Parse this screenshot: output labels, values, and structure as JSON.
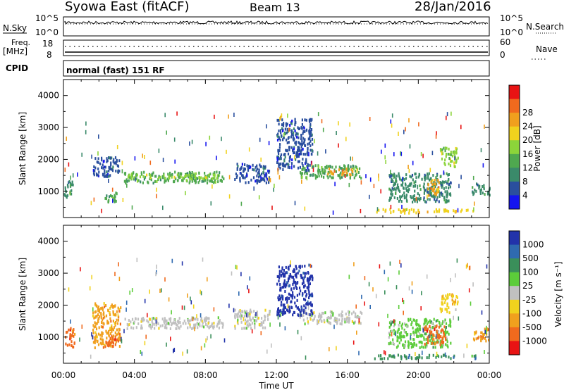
{
  "header": {
    "station": "Syowa East (fitACF)",
    "beam": "Beam 13",
    "date": "28/Jan/2016"
  },
  "top_panels": {
    "nsky_label": "N.Sky",
    "nsky_ticks": [
      "10^5",
      "10^0"
    ],
    "nsky_right_ticks": [
      "10^5",
      "10^0"
    ],
    "nsearch_label": "N.Search",
    "freq_label_1": "Freq.",
    "freq_label_2": "[MHz]",
    "freq_ticks": [
      "18",
      "8"
    ],
    "nave_ticks": [
      "60",
      "0"
    ],
    "nave_label": "Nave",
    "cpid_label": "CPID",
    "cpid_text": "normal (fast) 151 RF"
  },
  "colors": {
    "power": [
      "#1414f0",
      "#2a4f9e",
      "#3a8a6a",
      "#4fa84f",
      "#8cd43a",
      "#f0d21e",
      "#f0a01e",
      "#f06a1e",
      "#e81414"
    ],
    "velocity": [
      "#2233aa",
      "#2f6ab0",
      "#3a8f5a",
      "#5ccc3a",
      "#c0c0c0",
      "#f0d21e",
      "#f0a01e",
      "#f06a1e",
      "#e81414"
    ]
  },
  "chart_data": [
    {
      "type": "heatmap",
      "name": "power",
      "ylabel": "Slant Range [km]",
      "ylim": [
        180,
        4500
      ],
      "yticks": [
        "1000",
        "2000",
        "3000",
        "4000"
      ],
      "xlim": [
        0,
        24
      ],
      "colorbar_label": "Power [dB]",
      "colorbar_ticks": [
        "4",
        "8",
        "12",
        "16",
        "20",
        "24",
        "28"
      ],
      "regions": [
        {
          "t0": 3.4,
          "t1": 9.0,
          "r0": 1300,
          "r1": 1650,
          "c": 3
        },
        {
          "t0": 3.6,
          "t1": 8.8,
          "r0": 1420,
          "r1": 1560,
          "c": 4
        },
        {
          "t0": 1.6,
          "t1": 3.2,
          "r0": 1500,
          "r1": 2100,
          "c": 1
        },
        {
          "t0": 0.0,
          "t1": 0.5,
          "r0": 800,
          "r1": 1350,
          "c": 2
        },
        {
          "t0": 2.3,
          "t1": 3.0,
          "r0": 700,
          "r1": 1000,
          "c": 3
        },
        {
          "t0": 9.6,
          "t1": 11.6,
          "r0": 1300,
          "r1": 1900,
          "c": 1
        },
        {
          "t0": 13.3,
          "t1": 16.8,
          "r0": 1450,
          "r1": 1850,
          "c": 3
        },
        {
          "t0": 14.8,
          "t1": 16.3,
          "r0": 1550,
          "r1": 1750,
          "c": 6
        },
        {
          "t0": 17.5,
          "t1": 23.2,
          "r0": 360,
          "r1": 480,
          "c": 5
        },
        {
          "t0": 18.3,
          "t1": 21.8,
          "r0": 700,
          "r1": 1600,
          "c": 2
        },
        {
          "t0": 20.5,
          "t1": 21.2,
          "r0": 900,
          "r1": 1400,
          "c": 6
        },
        {
          "t0": 21.2,
          "t1": 22.2,
          "r0": 1800,
          "r1": 2400,
          "c": 4
        },
        {
          "t0": 23.0,
          "t1": 24.0,
          "r0": 900,
          "r1": 1300,
          "c": 2
        },
        {
          "t0": 12.0,
          "t1": 14.0,
          "r0": 1700,
          "r1": 3300,
          "c": 1
        }
      ]
    },
    {
      "type": "heatmap",
      "name": "velocity",
      "ylabel": "Slant Range [km]",
      "ylim": [
        180,
        4500
      ],
      "yticks": [
        "1000",
        "2000",
        "3000",
        "4000"
      ],
      "xlabel": "Time UT",
      "xlim": [
        0,
        24
      ],
      "xticks": [
        "00:00",
        "04:00",
        "08:00",
        "12:00",
        "16:00",
        "20:00",
        "00:00"
      ],
      "colorbar_label": "Velocity [m s⁻¹]",
      "colorbar_ticks": [
        "1000",
        "500",
        "100",
        "25",
        "-25",
        "-100",
        "-500",
        "-1000"
      ],
      "regions": [
        {
          "t0": 3.4,
          "t1": 9.0,
          "r0": 1300,
          "r1": 1650,
          "c": 4
        },
        {
          "t0": 0.0,
          "t1": 0.6,
          "r0": 700,
          "r1": 1350,
          "c": 7
        },
        {
          "t0": 1.6,
          "t1": 3.2,
          "r0": 700,
          "r1": 2100,
          "c": 6
        },
        {
          "t0": 2.3,
          "t1": 3.0,
          "r0": 700,
          "r1": 1000,
          "c": 7
        },
        {
          "t0": 9.6,
          "t1": 11.6,
          "r0": 1300,
          "r1": 1900,
          "c": 4
        },
        {
          "t0": 13.3,
          "t1": 16.8,
          "r0": 1450,
          "r1": 1850,
          "c": 4
        },
        {
          "t0": 17.5,
          "t1": 23.2,
          "r0": 360,
          "r1": 480,
          "c": 2
        },
        {
          "t0": 18.3,
          "t1": 21.8,
          "r0": 700,
          "r1": 1600,
          "c": 3
        },
        {
          "t0": 20.3,
          "t1": 21.5,
          "r0": 800,
          "r1": 1400,
          "c": 7
        },
        {
          "t0": 21.2,
          "t1": 22.2,
          "r0": 1800,
          "r1": 2400,
          "c": 5
        },
        {
          "t0": 23.0,
          "t1": 24.0,
          "r0": 900,
          "r1": 1300,
          "c": 6
        },
        {
          "t0": 12.0,
          "t1": 14.0,
          "r0": 1700,
          "r1": 3300,
          "c": 0
        }
      ]
    }
  ]
}
